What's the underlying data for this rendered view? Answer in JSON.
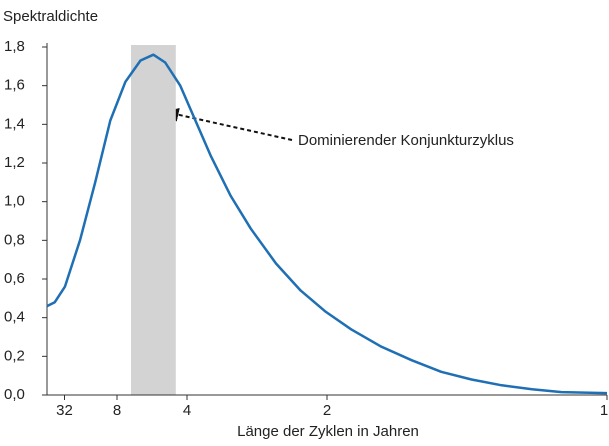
{
  "chart_data": {
    "type": "line",
    "y_label": "Spektraldichte",
    "x_label": "Länge der Zyklen in Jahren",
    "annotation": "Dominierender Konjunkturzyklus",
    "shaded_range": [
      0.15,
      0.23
    ],
    "shaded_color": "#d3d3d3",
    "x": [
      0,
      0.014,
      0.032,
      0.059,
      0.086,
      0.113,
      0.14,
      0.167,
      0.19,
      0.211,
      0.238,
      0.265,
      0.292,
      0.328,
      0.364,
      0.409,
      0.453,
      0.498,
      0.543,
      0.597,
      0.651,
      0.704,
      0.758,
      0.812,
      0.866,
      0.919,
      1.0
    ],
    "series": [
      {
        "color": "#1f6fb4",
        "values": [
          0.46,
          0.48,
          0.56,
          0.8,
          1.1,
          1.42,
          1.62,
          1.73,
          1.76,
          1.72,
          1.6,
          1.42,
          1.24,
          1.03,
          0.86,
          0.68,
          0.54,
          0.43,
          0.34,
          0.25,
          0.18,
          0.12,
          0.08,
          0.05,
          0.03,
          0.015,
          0.01
        ]
      }
    ],
    "xlim": [
      0,
      1
    ],
    "xticks": [
      {
        "value": 0.03125,
        "label": "32"
      },
      {
        "value": 0.125,
        "label": "8"
      },
      {
        "value": 0.25,
        "label": "4"
      },
      {
        "value": 0.5,
        "label": "2"
      },
      {
        "value": 1,
        "label": "1"
      }
    ],
    "ylim": [
      0,
      1.8
    ],
    "yticks": [
      {
        "value": 0,
        "label": "0,0"
      },
      {
        "value": 0.2,
        "label": "0,2"
      },
      {
        "value": 0.4,
        "label": "0,4"
      },
      {
        "value": 0.6,
        "label": "0,6"
      },
      {
        "value": 0.8,
        "label": "0,8"
      },
      {
        "value": 1.0,
        "label": "1,0"
      },
      {
        "value": 1.2,
        "label": "1,2"
      },
      {
        "value": 1.4,
        "label": "1,4"
      },
      {
        "value": 1.6,
        "label": "1,6"
      },
      {
        "value": 1.8,
        "label": "1,8"
      }
    ],
    "grid": false
  }
}
